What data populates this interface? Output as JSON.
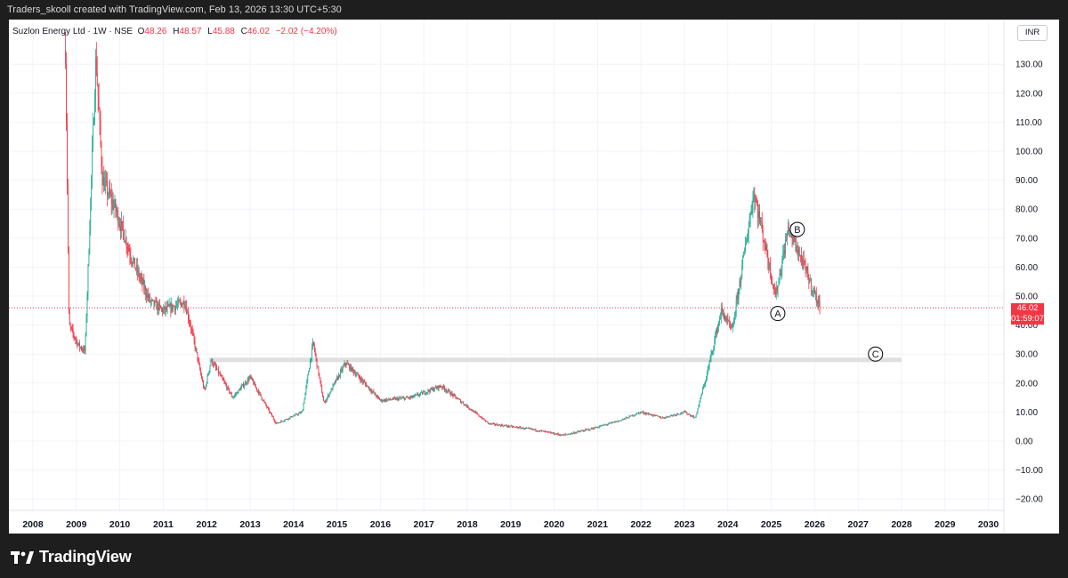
{
  "header": {
    "credit": "Traders_skooll created with TradingView.com, Feb 13, 2026 13:30 UTC+5:30"
  },
  "legend": {
    "symbol": "Suzlon Energy Ltd · 1W · NSE",
    "o_label": "O",
    "o_value": "48.26",
    "h_label": "H",
    "h_value": "48.57",
    "l_label": "L",
    "l_value": "45.88",
    "c_label": "C",
    "c_value": "46.02",
    "change": "−2.02 (−4.20%)"
  },
  "currency": "INR",
  "price_tag": {
    "price": "46.02",
    "countdown": "01:59:07"
  },
  "brand": {
    "name": "TradingView"
  },
  "colors": {
    "up": "#22ab94",
    "down": "#f23645",
    "grid": "#f0f3fa",
    "zone": "#e0e0e0"
  },
  "chart_data": {
    "type": "candlestick",
    "title": "Suzlon Energy Ltd · 1W · NSE",
    "ylim": [
      -20,
      135
    ],
    "y_ticks": [
      "130.00",
      "120.00",
      "110.00",
      "100.00",
      "90.00",
      "80.00",
      "70.00",
      "60.00",
      "50.00",
      "40.00",
      "30.00",
      "20.00",
      "10.00",
      "0.00",
      "−10.00",
      "−20.00"
    ],
    "x_ticks": [
      "2008",
      "2009",
      "2010",
      "2011",
      "2012",
      "2013",
      "2014",
      "2015",
      "2016",
      "2017",
      "2018",
      "2019",
      "2020",
      "2021",
      "2022",
      "2023",
      "2024",
      "2025",
      "2026",
      "2027",
      "2028",
      "2029",
      "2030"
    ],
    "approx_price_path": [
      {
        "x": 2008.75,
        "y": 135
      },
      {
        "x": 2008.83,
        "y": 40
      },
      {
        "x": 2009.05,
        "y": 33
      },
      {
        "x": 2009.2,
        "y": 31
      },
      {
        "x": 2009.45,
        "y": 133
      },
      {
        "x": 2009.6,
        "y": 90
      },
      {
        "x": 2009.9,
        "y": 80
      },
      {
        "x": 2010.3,
        "y": 62
      },
      {
        "x": 2010.7,
        "y": 48
      },
      {
        "x": 2011.0,
        "y": 45
      },
      {
        "x": 2011.5,
        "y": 48
      },
      {
        "x": 2011.7,
        "y": 35
      },
      {
        "x": 2011.95,
        "y": 17
      },
      {
        "x": 2012.1,
        "y": 28
      },
      {
        "x": 2012.6,
        "y": 15
      },
      {
        "x": 2013.0,
        "y": 22
      },
      {
        "x": 2013.6,
        "y": 6
      },
      {
        "x": 2014.2,
        "y": 10
      },
      {
        "x": 2014.45,
        "y": 34
      },
      {
        "x": 2014.7,
        "y": 13
      },
      {
        "x": 2015.2,
        "y": 27
      },
      {
        "x": 2016.0,
        "y": 14
      },
      {
        "x": 2016.7,
        "y": 15
      },
      {
        "x": 2017.4,
        "y": 19
      },
      {
        "x": 2018.5,
        "y": 6
      },
      {
        "x": 2019.5,
        "y": 4
      },
      {
        "x": 2020.2,
        "y": 2
      },
      {
        "x": 2020.8,
        "y": 4
      },
      {
        "x": 2021.5,
        "y": 7
      },
      {
        "x": 2022.0,
        "y": 10
      },
      {
        "x": 2022.5,
        "y": 8
      },
      {
        "x": 2023.0,
        "y": 10
      },
      {
        "x": 2023.25,
        "y": 8
      },
      {
        "x": 2023.5,
        "y": 22
      },
      {
        "x": 2023.85,
        "y": 45
      },
      {
        "x": 2024.1,
        "y": 38
      },
      {
        "x": 2024.6,
        "y": 86
      },
      {
        "x": 2025.1,
        "y": 50
      },
      {
        "x": 2025.4,
        "y": 74
      },
      {
        "x": 2026.12,
        "y": 46
      }
    ],
    "last_price": 46.02,
    "zone": {
      "y": 28,
      "x_from": 2012.05,
      "x_to": 2028.0
    },
    "wave_labels": [
      {
        "label": "A",
        "x": 2025.15,
        "y": 44
      },
      {
        "label": "B",
        "x": 2025.6,
        "y": 73
      },
      {
        "label": "C",
        "x": 2027.4,
        "y": 30
      }
    ]
  }
}
